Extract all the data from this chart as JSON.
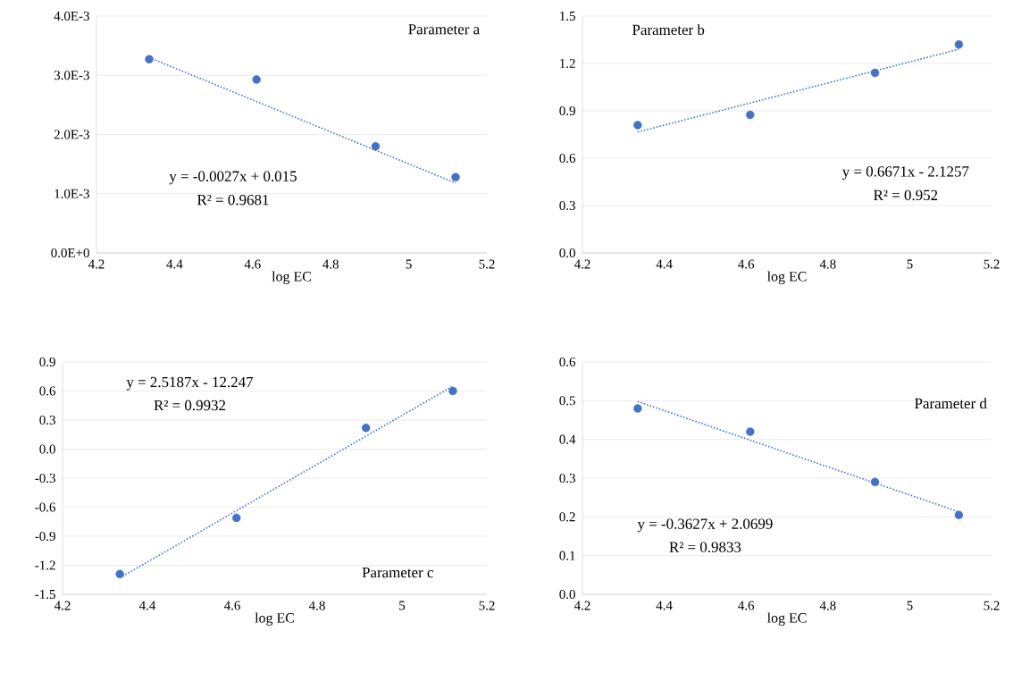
{
  "chart_data": [
    {
      "type": "scatter",
      "xlabel": "log EC",
      "xlim": [
        4.2,
        5.2
      ],
      "xticks": [
        4.2,
        4.4,
        4.6,
        4.8,
        5,
        5.2
      ],
      "ylim": [
        0,
        0.004
      ],
      "yticks": [
        {
          "value": 0,
          "label": "0.0E+0"
        },
        {
          "value": 0.001,
          "label": "1.0E-3"
        },
        {
          "value": 0.002,
          "label": "2.0E-3"
        },
        {
          "value": 0.003,
          "label": "3.0E-3"
        },
        {
          "value": 0.004,
          "label": "4.0E-3"
        }
      ],
      "grid": "y",
      "annotations": [
        "Parameter a",
        "y = -0.0027x + 0.015",
        "R² = 0.9681"
      ],
      "series": [
        {
          "type": "scatter",
          "color": "#4472c4",
          "marker": "circle",
          "x": [
            4.335,
            4.61,
            4.915,
            5.12
          ],
          "values": [
            0.00327,
            0.00293,
            0.0018,
            0.00128
          ]
        },
        {
          "type": "line",
          "color": "#4472c4",
          "line_style": "dotted",
          "x": [
            4.335,
            5.12
          ],
          "values": [
            0.0033,
            0.00118
          ]
        }
      ]
    },
    {
      "type": "scatter",
      "xlabel": "log EC",
      "xlim": [
        4.2,
        5.2
      ],
      "xticks": [
        4.2,
        4.4,
        4.6,
        4.8,
        5,
        5.2
      ],
      "ylim": [
        0,
        1.5
      ],
      "yticks": [
        {
          "value": 0,
          "label": "0.0"
        },
        0.3,
        0.6,
        0.9,
        1.2,
        1.5
      ],
      "grid": "y",
      "annotations": [
        "Parameter b",
        "y = 0.6671x - 2.1257",
        "R² = 0.952"
      ],
      "series": [
        {
          "type": "scatter",
          "color": "#4472c4",
          "marker": "circle",
          "x": [
            4.335,
            4.61,
            4.915,
            5.12
          ],
          "values": [
            0.81,
            0.875,
            1.14,
            1.32
          ]
        },
        {
          "type": "line",
          "color": "#4472c4",
          "line_style": "dotted",
          "x": [
            4.335,
            5.12
          ],
          "values": [
            0.766,
            1.29
          ]
        }
      ]
    },
    {
      "type": "scatter",
      "xlabel": "log EC",
      "xlim": [
        4.2,
        5.2
      ],
      "xticks": [
        4.2,
        4.4,
        4.6,
        4.8,
        5,
        5.2
      ],
      "ylim": [
        -1.5,
        0.9
      ],
      "yticks": [
        -1.5,
        -1.2,
        -0.9,
        -0.6,
        -0.3,
        {
          "value": 0,
          "label": "0.0"
        },
        0.3,
        0.6,
        0.9
      ],
      "grid": "y",
      "annotations": [
        "y = 2.5187x - 12.247",
        "R² = 0.9932",
        "Parameter c"
      ],
      "series": [
        {
          "type": "scatter",
          "color": "#4472c4",
          "marker": "circle",
          "x": [
            4.335,
            4.61,
            4.915,
            5.12
          ],
          "values": [
            -1.29,
            -0.71,
            0.22,
            0.6
          ]
        },
        {
          "type": "line",
          "color": "#4472c4",
          "line_style": "dotted",
          "x": [
            4.335,
            5.12
          ],
          "values": [
            -1.33,
            0.65
          ]
        }
      ]
    },
    {
      "type": "scatter",
      "xlabel": "log EC",
      "xlim": [
        4.2,
        5.2
      ],
      "xticks": [
        4.2,
        4.4,
        4.6,
        4.8,
        5,
        5.2
      ],
      "ylim": [
        0,
        0.6
      ],
      "yticks": [
        {
          "value": 0,
          "label": "0.0"
        },
        0.1,
        0.2,
        0.3,
        0.4,
        0.5,
        0.6
      ],
      "grid": "y",
      "annotations": [
        "Parameter d",
        "y = -0.3627x + 2.0699",
        "R² = 0.9833"
      ],
      "series": [
        {
          "type": "scatter",
          "color": "#4472c4",
          "marker": "circle",
          "x": [
            4.335,
            4.61,
            4.915,
            5.12
          ],
          "values": [
            0.48,
            0.42,
            0.29,
            0.205
          ]
        },
        {
          "type": "line",
          "color": "#4472c4",
          "line_style": "dotted",
          "x": [
            4.335,
            5.12
          ],
          "values": [
            0.498,
            0.213
          ]
        }
      ]
    }
  ]
}
